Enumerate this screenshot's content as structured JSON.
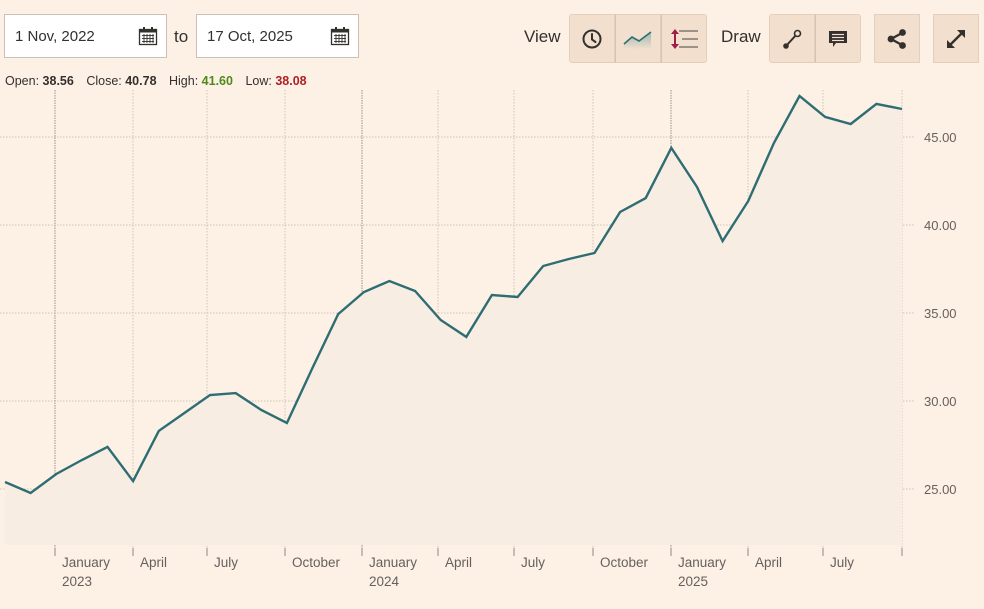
{
  "date_range": {
    "from": "1 Nov, 2022",
    "separator": "to",
    "to": "17 Oct, 2025"
  },
  "toolbar": {
    "view_label": "View",
    "draw_label": "Draw",
    "view_buttons": [
      {
        "icon": "clock-icon",
        "name": "time-range-button"
      },
      {
        "icon": "mountain-chart-icon",
        "name": "chart-type-button"
      },
      {
        "icon": "axis-scale-icon",
        "name": "axis-scale-button"
      }
    ],
    "draw_buttons": [
      {
        "icon": "line-draw-icon",
        "name": "draw-line-button"
      },
      {
        "icon": "comment-icon",
        "name": "annotate-button"
      }
    ],
    "share_icon": "share-icon",
    "fullscreen_icon": "expand-icon"
  },
  "ohlc": {
    "open_label": "Open:",
    "open": "38.56",
    "close_label": "Close:",
    "close": "40.78",
    "high_label": "High:",
    "high": "41.60",
    "low_label": "Low:",
    "low": "38.08"
  },
  "colors": {
    "background": "#fdf1e6",
    "line": "#2e6e73",
    "area_top": "#9ab8b2",
    "area_bottom": "#f7ede2",
    "high": "#4e8a1a",
    "low": "#b01f24",
    "grid": "#c9bdb2"
  },
  "chart_data": {
    "type": "area",
    "title": "",
    "xlabel": "",
    "ylabel": "",
    "x": [
      "2022-11",
      "2022-12",
      "2023-01",
      "2023-02",
      "2023-03",
      "2023-04",
      "2023-05",
      "2023-06",
      "2023-07",
      "2023-08",
      "2023-09",
      "2023-10",
      "2023-11",
      "2023-12",
      "2024-01",
      "2024-02",
      "2024-03",
      "2024-04",
      "2024-05",
      "2024-06",
      "2024-07",
      "2024-08",
      "2024-09",
      "2024-10",
      "2024-11",
      "2024-12",
      "2025-01",
      "2025-02",
      "2025-03",
      "2025-04",
      "2025-05",
      "2025-06",
      "2025-07",
      "2025-08",
      "2025-09",
      "2025-10"
    ],
    "values": [
      25.4,
      24.77,
      25.85,
      26.65,
      27.39,
      25.45,
      28.3,
      29.32,
      30.34,
      30.45,
      29.49,
      28.75,
      31.88,
      34.94,
      36.19,
      36.82,
      36.25,
      34.6,
      33.64,
      36.02,
      35.91,
      37.67,
      38.07,
      38.41,
      40.74,
      41.53,
      44.38,
      42.16,
      39.09,
      41.36,
      44.66,
      47.33,
      46.14,
      45.74,
      46.88,
      46.59
    ],
    "ylim": [
      22.0,
      49.0
    ],
    "yticks": [
      "25.00",
      "30.00",
      "35.00",
      "40.00",
      "45.00"
    ],
    "ytick_values": [
      25,
      30,
      35,
      40,
      45
    ],
    "xticks": [
      {
        "label": "January",
        "sub": "2023",
        "year": true
      },
      {
        "label": "April",
        "sub": "",
        "year": false
      },
      {
        "label": "July",
        "sub": "",
        "year": false
      },
      {
        "label": "October",
        "sub": "",
        "year": false
      },
      {
        "label": "January",
        "sub": "2024",
        "year": true
      },
      {
        "label": "April",
        "sub": "",
        "year": false
      },
      {
        "label": "July",
        "sub": "",
        "year": false
      },
      {
        "label": "October",
        "sub": "",
        "year": false
      },
      {
        "label": "January",
        "sub": "2025",
        "year": true
      },
      {
        "label": "April",
        "sub": "",
        "year": false
      },
      {
        "label": "July",
        "sub": "",
        "year": false
      },
      {
        "label": "",
        "sub": "",
        "year": false
      }
    ],
    "grid": true,
    "legend": "none",
    "y_axis_position": "right"
  }
}
